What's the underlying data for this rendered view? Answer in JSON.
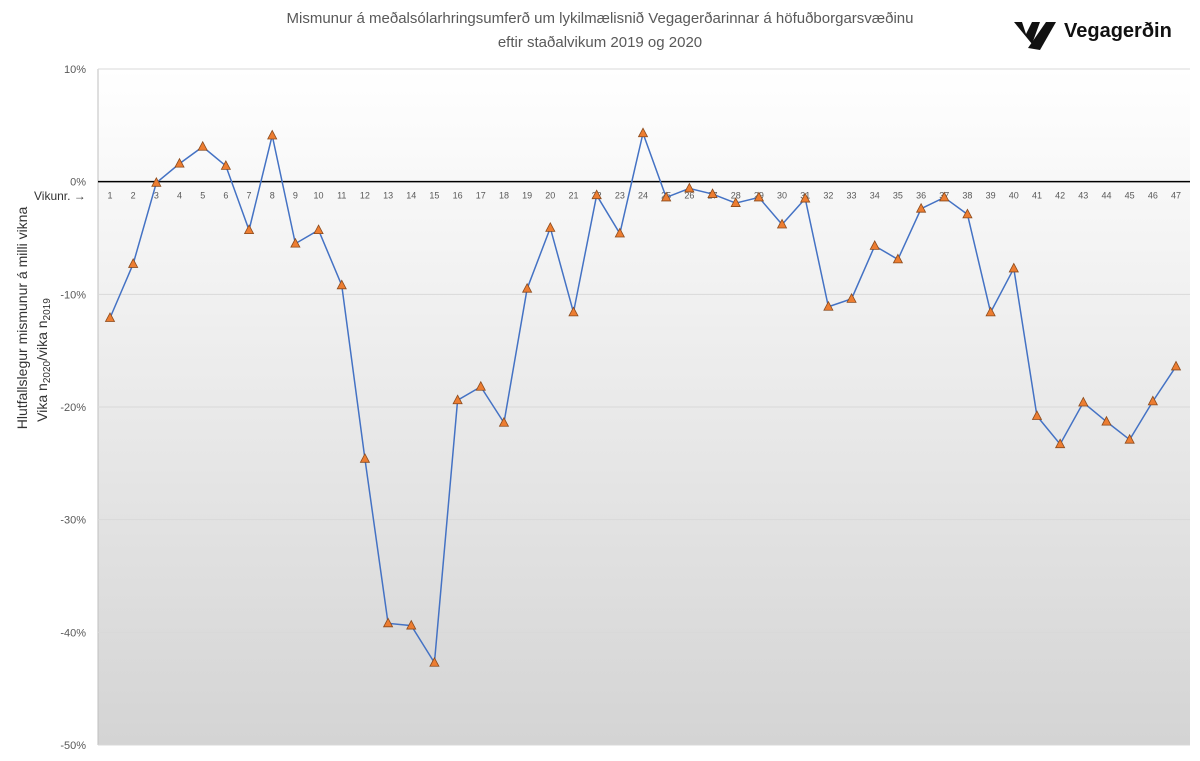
{
  "chart_data": {
    "type": "line",
    "title": [
      "Mismunur á meðalsólarhringsumferð  um lykilmælisnið Vegagerðarinnar  á höfuðborgarsvæðinu",
      "eftir staðalvikum 2019 og 2020"
    ],
    "y_label": [
      "Hlutfallslegur mismunur á milli vikna",
      [
        "Vika n",
        "2020",
        "/vika n",
        "2019"
      ]
    ],
    "x_label": "Vikunr. →",
    "logo": "Vegagerðin",
    "categories": [
      1,
      2,
      3,
      4,
      5,
      6,
      7,
      8,
      9,
      10,
      11,
      12,
      13,
      14,
      15,
      16,
      17,
      18,
      19,
      20,
      21,
      22,
      23,
      24,
      25,
      26,
      27,
      28,
      29,
      30,
      31,
      32,
      33,
      34,
      35,
      36,
      37,
      38,
      39,
      40,
      41,
      42,
      43,
      44,
      45,
      46,
      47
    ],
    "series": [
      {
        "color": "#4472c4",
        "marker_color": "#ed7d31",
        "values": [
          -12.1,
          -7.3,
          -0.1,
          1.6,
          3.1,
          1.4,
          -4.3,
          4.1,
          -5.5,
          -4.3,
          -9.2,
          -24.6,
          -39.2,
          -39.4,
          -42.7,
          -19.4,
          -18.2,
          -21.4,
          -9.5,
          -4.1,
          -11.6,
          -1.2,
          -4.6,
          4.3,
          -1.4,
          -0.6,
          -1.1,
          -1.9,
          -1.4,
          -3.8,
          -1.5,
          -11.1,
          -10.4,
          -5.7,
          -6.9,
          -2.4,
          -1.4,
          -2.9,
          -11.6,
          -7.7,
          -20.8,
          -23.3,
          -19.6,
          -21.3,
          -22.9,
          -19.5,
          -16.4
        ]
      }
    ],
    "ylim": [
      -50,
      10
    ],
    "yticks": [
      {
        "value": 10,
        "label": "10%"
      },
      {
        "value": 0,
        "label": "0%"
      },
      {
        "value": -10,
        "label": "-10%"
      },
      {
        "value": -20,
        "label": "-20%"
      },
      {
        "value": -30,
        "label": "-30%"
      },
      {
        "value": -40,
        "label": "-40%"
      },
      {
        "value": -50,
        "label": "-50%"
      }
    ],
    "grid": true
  }
}
